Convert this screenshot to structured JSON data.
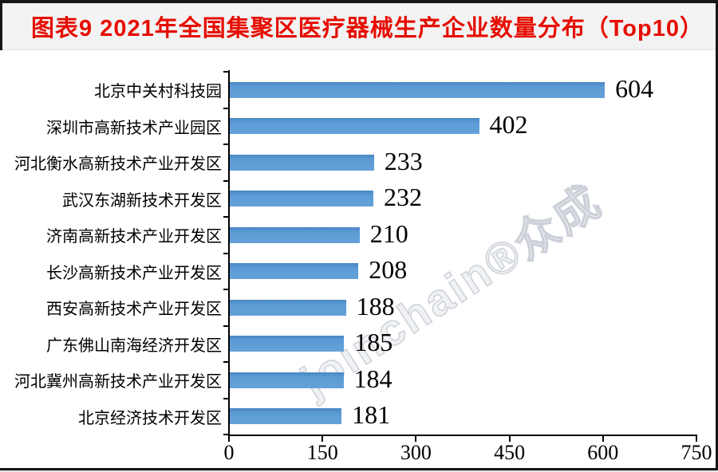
{
  "page": {
    "outer_bg": "#e3e3e3",
    "frame_border_color": "#161616",
    "title_band_bg": "#f3f3f3"
  },
  "header": {
    "title": "图表9  2021年全国集聚区医疗器械生产企业数量分布（Top10）",
    "title_color": "#e60d00"
  },
  "watermark": {
    "text": "joinchain®众成"
  },
  "chart_data": {
    "type": "bar",
    "orientation": "horizontal",
    "title": "2021年全国集聚区医疗器械生产企业数量分布（Top10）",
    "categories": [
      "北京中关村科技园",
      "深圳市高新技术产业园区",
      "河北衡水高新技术产业开发区",
      "武汉东湖新技术开发区",
      "济南高新技术产业开发区",
      "长沙高新技术产业开发区",
      "西安高新技术产业开发区",
      "广东佛山南海经济开发区",
      "河北冀州高新技术产业开发区",
      "北京经济技术开发区"
    ],
    "values": [
      604,
      402,
      233,
      232,
      210,
      208,
      188,
      185,
      184,
      181
    ],
    "xlabel": "",
    "ylabel": "",
    "xlim": [
      0,
      750
    ],
    "x_ticks": [
      0,
      150,
      300,
      450,
      600,
      750
    ],
    "bar_color": "#5b9bd5",
    "value_label_color": "#000000",
    "axis_color": "#000000",
    "grid": false,
    "legend_position": "none"
  }
}
